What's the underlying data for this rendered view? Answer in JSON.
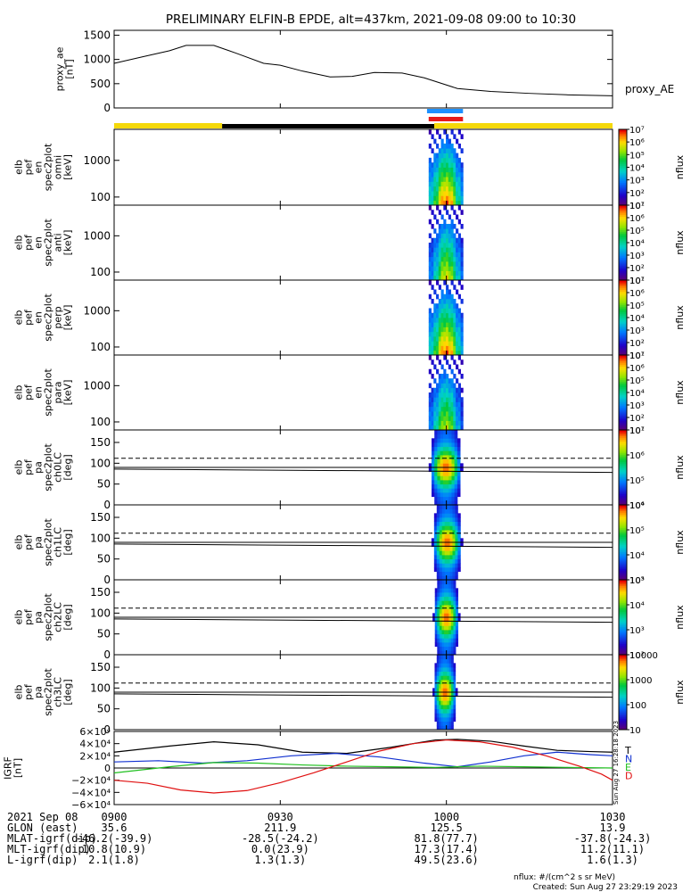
{
  "title": "PRELIMINARY ELFIN-B EPDE, alt=437km, 2021-09-08 09:00 to 10:30",
  "created": "Created: Sun Aug 27 23:29:19 2023",
  "created_vertical": "Sun Aug 27 16:28:18 2023",
  "flux_units": "nflux: #/(cm^2 s sr MeV)",
  "colors": {
    "axis": "#000000",
    "fgm_coverage_yellow": "#f5d90a",
    "fgm_coverage_black": "#000000",
    "bar_blue": "#1e90ff",
    "bar_red": "#e61a1a",
    "component_T": "#000000",
    "component_N": "#1030d0",
    "component_E": "#20c020",
    "component_D": "#e01010"
  },
  "time_axis": {
    "start": "09:00",
    "end": "10:30",
    "tick_labels": [
      "0900",
      "0930",
      "1000",
      "1030"
    ],
    "tick_minutes": [
      0,
      30,
      60,
      90
    ]
  },
  "coverage": {
    "yellow_start_min": 0,
    "yellow_end_min": 19.5,
    "black_start_min": 19.5,
    "black_end_min": 57.8,
    "yellow2_start_min": 57.8,
    "yellow2_end_min": 90,
    "blue_bar": [
      56.5,
      63
    ],
    "red_bar": [
      56.8,
      63
    ]
  },
  "footer": {
    "rows": [
      {
        "label": "2021 Sep 08",
        "values": [
          "0900",
          "0930",
          "1000",
          "1030"
        ]
      },
      {
        "label": "GLON (east)",
        "values": [
          "35.6",
          "211.9",
          "125.5",
          "13.9"
        ]
      },
      {
        "label": "MLAT-igrf(dip)",
        "values": [
          "-46.2(-39.9)",
          "-28.5(-24.2)",
          "81.8(77.7)",
          "-37.8(-24.3)"
        ]
      },
      {
        "label": "MLT-igrf(dip)",
        "values": [
          "10.8(10.9)",
          "0.0(23.9)",
          "17.3(17.4)",
          "11.2(11.1)"
        ]
      },
      {
        "label": "L-igrf(dip)",
        "values": [
          "2.1(1.8)",
          "1.3(1.3)",
          "49.5(23.6)",
          "1.6(1.3)"
        ]
      }
    ]
  },
  "chart_data": [
    {
      "type": "line",
      "panel": "proxy_ae",
      "ylabel": [
        "proxy_ae",
        "[nT]"
      ],
      "right_label": "proxy_AE",
      "ylim": [
        0,
        1600
      ],
      "yticks": [
        0,
        500,
        1000,
        1500
      ],
      "x_minutes": [
        0,
        5,
        10,
        13,
        18,
        22,
        27,
        30,
        34,
        39,
        43,
        47,
        52,
        56,
        62,
        68,
        75,
        82,
        90
      ],
      "values": [
        920,
        1050,
        1180,
        1290,
        1290,
        1130,
        920,
        880,
        760,
        640,
        650,
        730,
        720,
        620,
        400,
        340,
        300,
        270,
        250
      ]
    },
    {
      "type": "heatmap",
      "panel": "spec_omni",
      "ylabel": [
        "elb",
        "pef",
        "en",
        "spec2plot",
        "omni",
        "[keV]"
      ],
      "yscale": "log",
      "ylim": [
        60,
        7000
      ],
      "yticks": [
        100,
        1000
      ],
      "colorbar_label": "nflux",
      "colorbar_range": [
        10,
        10000000
      ],
      "colorbar_ticks": [
        "10¹",
        "10²",
        "10³",
        "10⁴",
        "10⁵",
        "10⁶",
        "10⁷"
      ],
      "active_interval_min": [
        56.8,
        63
      ],
      "intensity_profile": [
        0.45,
        0.6,
        0.8,
        0.9,
        0.95,
        0.85,
        0.7,
        0.5,
        0.35
      ]
    },
    {
      "type": "heatmap",
      "panel": "spec_anti",
      "ylabel": [
        "elb",
        "pef",
        "en",
        "spec2plot",
        "anti",
        "[keV]"
      ],
      "yscale": "log",
      "ylim": [
        60,
        7000
      ],
      "yticks": [
        100,
        1000
      ],
      "colorbar_label": "nflux",
      "colorbar_range": [
        10,
        10000000
      ],
      "colorbar_ticks": [
        "10¹",
        "10²",
        "10³",
        "10⁴",
        "10⁵",
        "10⁶",
        "10⁷"
      ],
      "active_interval_min": [
        56.8,
        63
      ],
      "intensity_profile": [
        0.3,
        0.45,
        0.6,
        0.75,
        0.8,
        0.7,
        0.55,
        0.4,
        0.25
      ]
    },
    {
      "type": "heatmap",
      "panel": "spec_perp",
      "ylabel": [
        "elb",
        "pef",
        "en",
        "spec2plot",
        "perp",
        "[keV]"
      ],
      "yscale": "log",
      "ylim": [
        60,
        7000
      ],
      "yticks": [
        100,
        1000
      ],
      "colorbar_label": "nflux",
      "colorbar_range": [
        10,
        10000000
      ],
      "colorbar_ticks": [
        "10¹",
        "10²",
        "10³",
        "10⁴",
        "10⁵",
        "10⁶",
        "10⁷"
      ],
      "active_interval_min": [
        56.8,
        63
      ],
      "intensity_profile": [
        0.45,
        0.6,
        0.8,
        0.9,
        0.95,
        0.85,
        0.7,
        0.5,
        0.35
      ]
    },
    {
      "type": "heatmap",
      "panel": "spec_para",
      "ylabel": [
        "elb",
        "pef",
        "en",
        "spec2plot",
        "para",
        "[keV]"
      ],
      "yscale": "log",
      "ylim": [
        60,
        7000
      ],
      "yticks": [
        100,
        1000
      ],
      "colorbar_label": "nflux",
      "colorbar_range": [
        10,
        10000000
      ],
      "colorbar_ticks": [
        "10¹",
        "10²",
        "10³",
        "10⁴",
        "10⁵",
        "10⁶",
        "10⁷"
      ],
      "active_interval_min": [
        56.8,
        63
      ],
      "intensity_profile": [
        0.3,
        0.45,
        0.6,
        0.7,
        0.75,
        0.65,
        0.5,
        0.35,
        0.2
      ]
    },
    {
      "type": "heatmap",
      "panel": "pa_ch0",
      "ylabel": [
        "elb",
        "pef",
        "pa",
        "spec2plot",
        "ch0LC",
        "[deg]"
      ],
      "ylim": [
        0,
        180
      ],
      "yticks": [
        0,
        50,
        100,
        150
      ],
      "loss_cone_deg": [
        86,
        78
      ],
      "anti_loss_cone_deg": [
        94,
        102
      ],
      "dashed_deg": 112,
      "solid_deg": 90,
      "colorbar_label": "nflux",
      "colorbar_range": [
        1000,
        10000000
      ],
      "colorbar_ticks": [
        "10⁴",
        "10⁵",
        "10⁶",
        "10⁷"
      ],
      "active_interval_min": [
        56.8,
        63
      ]
    },
    {
      "type": "heatmap",
      "panel": "pa_ch1",
      "ylabel": [
        "elb",
        "pef",
        "pa",
        "spec2plot",
        "ch1LC",
        "[deg]"
      ],
      "ylim": [
        0,
        180
      ],
      "yticks": [
        0,
        50,
        100,
        150
      ],
      "loss_cone_deg": [
        86,
        78
      ],
      "anti_loss_cone_deg": [
        94,
        102
      ],
      "dashed_deg": 112,
      "solid_deg": 90,
      "colorbar_label": "nflux",
      "colorbar_range": [
        1000,
        1000000
      ],
      "colorbar_ticks": [
        "10³",
        "10⁴",
        "10⁵",
        "10⁶"
      ],
      "active_interval_min": [
        57.3,
        63
      ]
    },
    {
      "type": "heatmap",
      "panel": "pa_ch2",
      "ylabel": [
        "elb",
        "pef",
        "pa",
        "spec2plot",
        "ch2LC",
        "[deg]"
      ],
      "ylim": [
        0,
        180
      ],
      "yticks": [
        0,
        50,
        100,
        150
      ],
      "loss_cone_deg": [
        86,
        78
      ],
      "anti_loss_cone_deg": [
        94,
        102
      ],
      "dashed_deg": 112,
      "solid_deg": 90,
      "colorbar_label": "nflux",
      "colorbar_range": [
        100,
        100000
      ],
      "colorbar_ticks": [
        "10²",
        "10³",
        "10⁴",
        "10⁵"
      ],
      "active_interval_min": [
        57.5,
        62.5
      ]
    },
    {
      "type": "heatmap",
      "panel": "pa_ch3",
      "ylabel": [
        "elb",
        "pef",
        "pa",
        "spec2plot",
        "ch3LC",
        "[deg]"
      ],
      "ylim": [
        0,
        180
      ],
      "yticks": [
        0,
        50,
        100,
        150
      ],
      "loss_cone_deg": [
        86,
        78
      ],
      "anti_loss_cone_deg": [
        94,
        102
      ],
      "dashed_deg": 112,
      "solid_deg": 90,
      "colorbar_label": "nflux",
      "colorbar_range": [
        10,
        10000
      ],
      "colorbar_ticks": [
        "10",
        "100",
        "1000",
        "10000"
      ],
      "active_interval_min": [
        57.5,
        62
      ]
    },
    {
      "type": "line",
      "panel": "igrf",
      "ylabel": [
        "IGRF",
        "[nT]"
      ],
      "ylim": [
        -60000,
        60000
      ],
      "yticks": [
        -60000,
        -40000,
        -20000,
        0,
        20000,
        40000,
        60000
      ],
      "ytick_labels": [
        "−6×10⁴",
        "−4×10⁴",
        "−2×10⁴",
        "0",
        "2×10⁴",
        "4×10⁴",
        "6×10⁴"
      ],
      "series": [
        {
          "name": "T",
          "x_minutes": [
            0,
            10,
            18,
            26,
            34,
            42,
            50,
            58,
            62,
            68,
            74,
            80,
            86,
            90
          ],
          "values": [
            26000,
            36000,
            43000,
            38000,
            26000,
            24000,
            34000,
            46000,
            47000,
            44000,
            36000,
            29000,
            27000,
            26000
          ]
        },
        {
          "name": "N",
          "x_minutes": [
            0,
            8,
            16,
            24,
            32,
            40,
            48,
            56,
            62,
            68,
            74,
            80,
            86,
            90
          ],
          "values": [
            10000,
            12000,
            8000,
            12000,
            20000,
            24000,
            18000,
            8000,
            2000,
            10000,
            20000,
            26000,
            22000,
            20000
          ]
        },
        {
          "name": "E",
          "x_minutes": [
            0,
            10,
            18,
            26,
            34,
            42,
            50,
            58,
            66,
            74,
            82,
            90
          ],
          "values": [
            -8000,
            2000,
            9000,
            8000,
            5000,
            3000,
            2000,
            1000,
            3000,
            2000,
            1000,
            0
          ]
        },
        {
          "name": "D",
          "x_minutes": [
            0,
            6,
            12,
            18,
            24,
            30,
            36,
            42,
            48,
            54,
            60,
            66,
            72,
            78,
            84,
            88,
            90
          ],
          "values": [
            -20000,
            -25000,
            -36000,
            -41000,
            -37000,
            -24000,
            -8000,
            10000,
            28000,
            40000,
            46000,
            43000,
            34000,
            20000,
            3000,
            -10000,
            -20000
          ]
        }
      ]
    }
  ]
}
